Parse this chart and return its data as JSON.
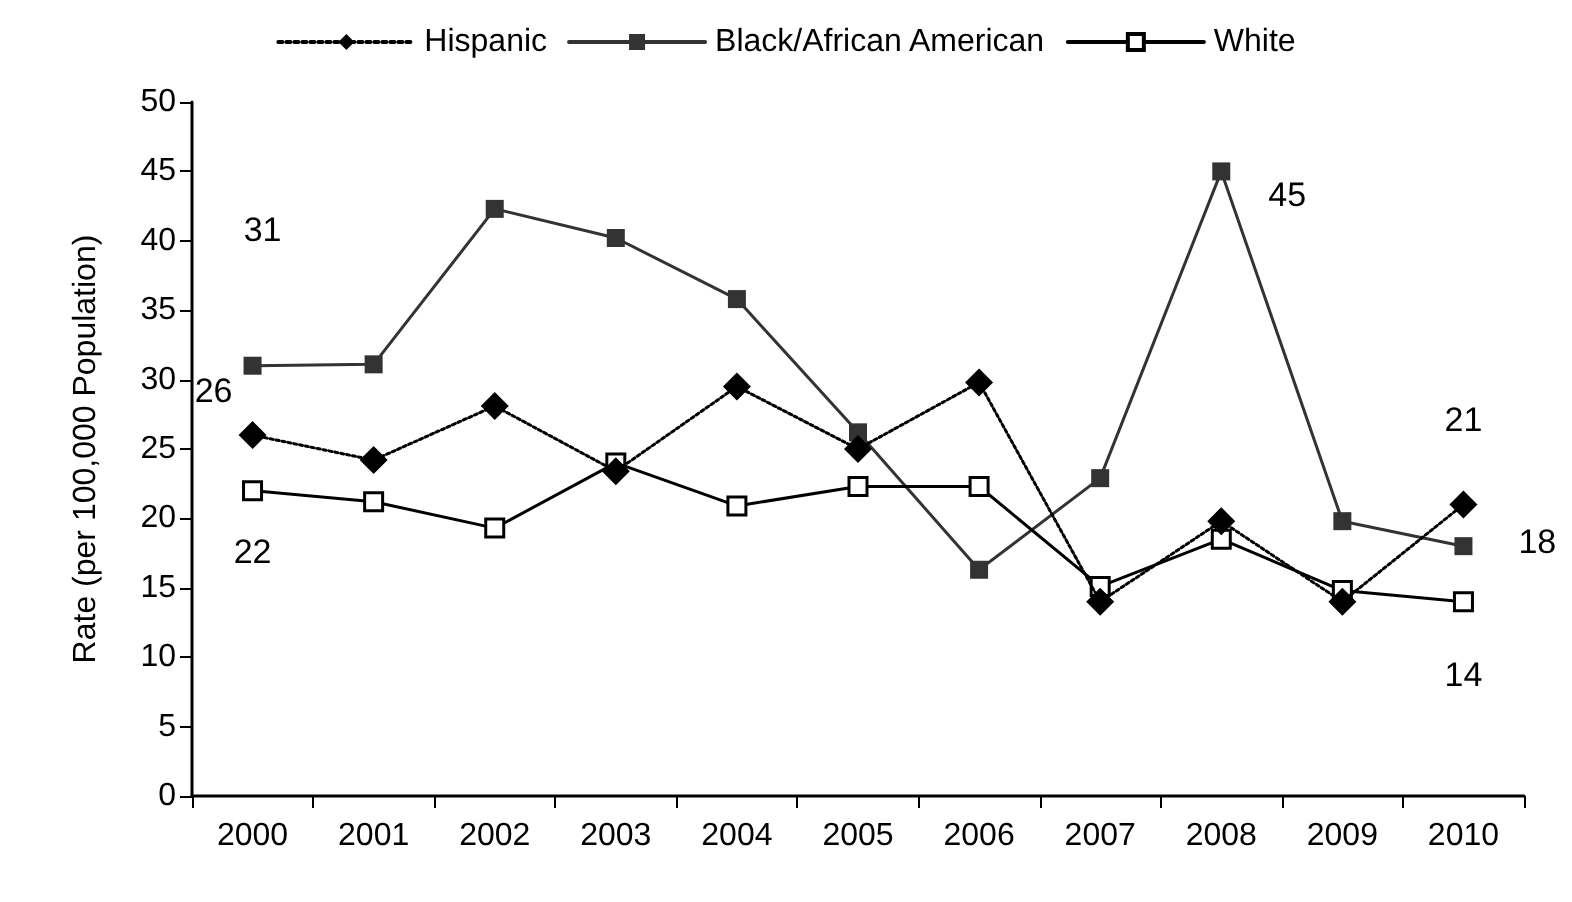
{
  "chart_data": {
    "type": "line",
    "ylabel": "Rate (per 100,000 Population)",
    "categories": [
      "2000",
      "2001",
      "2002",
      "2003",
      "2004",
      "2005",
      "2006",
      "2007",
      "2008",
      "2009",
      "2010"
    ],
    "series": [
      {
        "name": "Hispanic",
        "color": "#000000",
        "marker": "diamond",
        "line_style": "dotted",
        "values": [
          26,
          24.2,
          28.1,
          23.4,
          29.5,
          25,
          29.8,
          14,
          19.8,
          14,
          21
        ],
        "value_labels": [
          "26",
          null,
          null,
          null,
          null,
          null,
          null,
          null,
          null,
          null,
          "21"
        ]
      },
      {
        "name": "Black/African American",
        "color": "#333333",
        "marker": "square",
        "line_style": "solid",
        "values": [
          31,
          31.1,
          42.3,
          40.2,
          35.8,
          26.2,
          16.3,
          22.9,
          45,
          19.8,
          18
        ],
        "value_labels": [
          "31",
          null,
          null,
          null,
          null,
          null,
          null,
          null,
          "45",
          null,
          "18"
        ]
      },
      {
        "name": "White",
        "color": "#000000",
        "marker": "square",
        "line_style": "solid",
        "values": [
          22,
          21.2,
          19.3,
          24,
          20.9,
          22.3,
          22.3,
          15.1,
          18.5,
          14.8,
          14
        ],
        "value_labels": [
          "22",
          null,
          null,
          null,
          null,
          null,
          null,
          null,
          null,
          null,
          "14"
        ]
      }
    ],
    "ylim": [
      0,
      50
    ],
    "yticks": [
      0,
      5,
      10,
      15,
      20,
      25,
      30,
      35,
      40,
      45,
      50
    ],
    "grid": false,
    "legend": "top"
  }
}
